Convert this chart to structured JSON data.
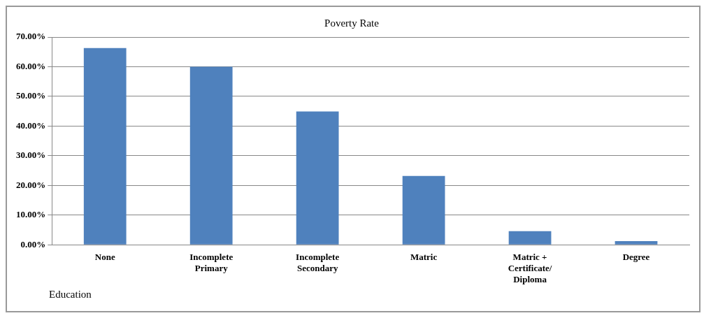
{
  "chart_data": {
    "type": "bar",
    "title": "Poverty Rate",
    "categories": [
      "None",
      "Incomplete Primary",
      "Incomplete Secondary",
      "Matric",
      "Matric + Certificate/ Diploma",
      "Degree"
    ],
    "values": [
      66.3,
      60.0,
      44.9,
      23.2,
      4.6,
      1.2
    ],
    "color": "#4f81bd",
    "ylim": [
      0,
      70
    ],
    "yticks": [
      {
        "value": 0,
        "label": "0.00%"
      },
      {
        "value": 10,
        "label": "10.00%"
      },
      {
        "value": 20,
        "label": "20.00%"
      },
      {
        "value": 30,
        "label": "30.00%"
      },
      {
        "value": 40,
        "label": "40.00%"
      },
      {
        "value": 50,
        "label": "50.00%"
      },
      {
        "value": 60,
        "label": "60.00%"
      },
      {
        "value": 70,
        "label": "70.00%"
      }
    ],
    "grid": "y",
    "legend": false,
    "annotations": [
      "Education"
    ]
  }
}
